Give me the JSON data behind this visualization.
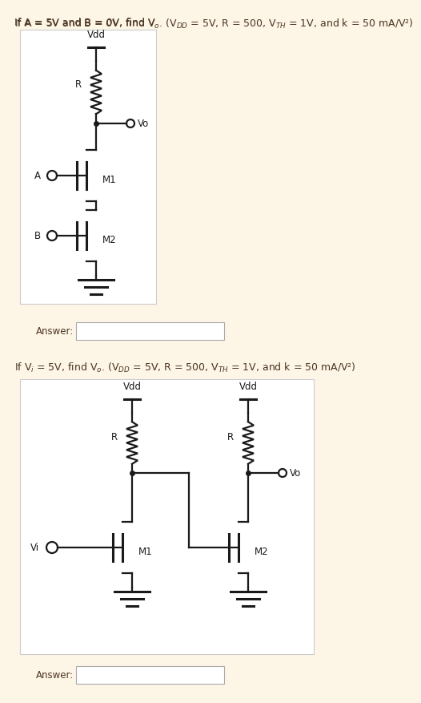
{
  "bg_color": "#fdf5e6",
  "circuit_bg": "#ffffff",
  "line_color": "#1a1a1a",
  "text_color": "#4a3520",
  "title1_parts": [
    "If A = 5V and B = 0V, find V",
    "₀",
    ". (V",
    "DD",
    " = 5V, R = 500, V",
    "TH",
    " = 1V, and k = 50 mA/V²)"
  ],
  "title2_parts": [
    "If V",
    "i",
    " = 5V, find V",
    "₀",
    ". (V",
    "DD",
    " = 5V, R = 500, V",
    "TH",
    " = 1V, and k = 50 mA/V²)"
  ],
  "answer_label": "Answer:",
  "font_size_title": 9.0,
  "font_size_label": 8.5,
  "font_size_sub": 7.0,
  "lw": 1.6,
  "lw_thick": 2.2
}
